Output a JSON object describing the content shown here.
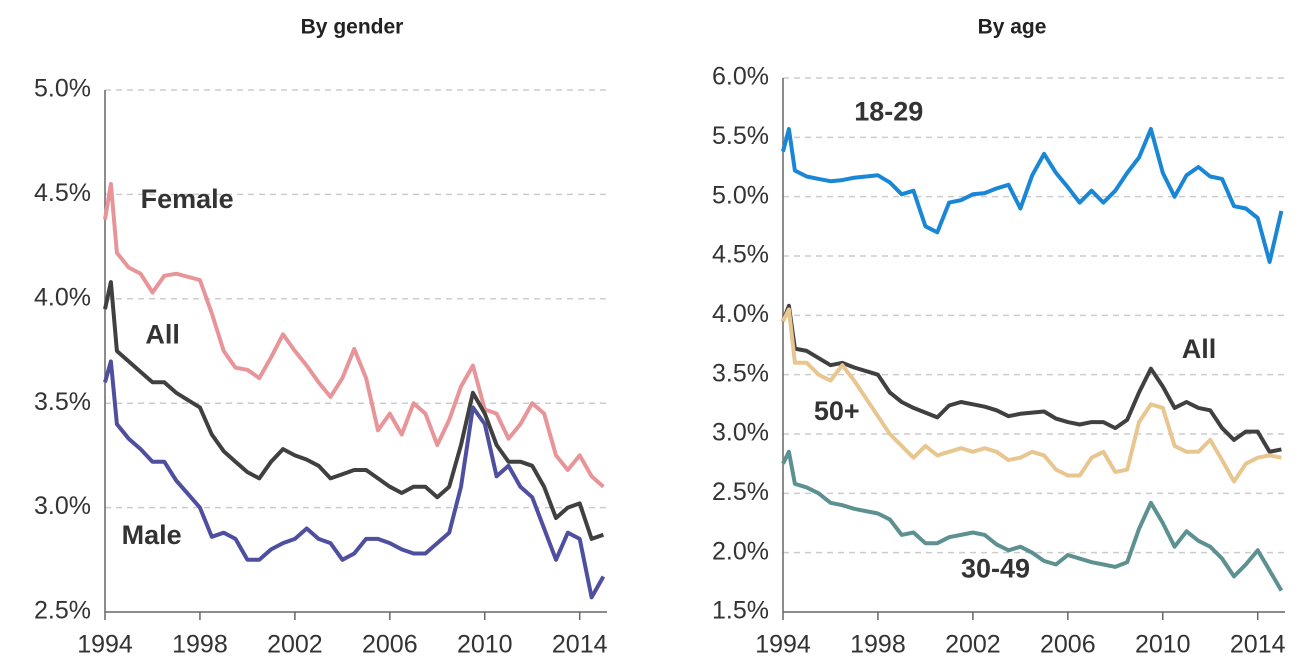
{
  "chart_data": [
    {
      "type": "line",
      "title": "By gender",
      "x": [
        1994,
        1994.25,
        1994.5,
        1995,
        1995.5,
        1996,
        1996.5,
        1997,
        1998,
        1998.5,
        1999,
        1999.5,
        2000,
        2000.5,
        2001,
        2001.5,
        2002,
        2002.5,
        2003,
        2003.5,
        2004,
        2004.5,
        2005,
        2005.5,
        2006,
        2006.5,
        2007,
        2007.5,
        2008,
        2008.5,
        2009,
        2009.5,
        2010,
        2010.5,
        2011,
        2011.5,
        2012,
        2012.5,
        2013,
        2013.5,
        2014,
        2014.5,
        2015
      ],
      "series": [
        {
          "name": "Female",
          "color": "#e8959a",
          "values": [
            4.38,
            4.55,
            4.22,
            4.15,
            4.12,
            4.03,
            4.11,
            4.12,
            4.09,
            3.93,
            3.75,
            3.67,
            3.66,
            3.62,
            3.72,
            3.83,
            3.75,
            3.68,
            3.6,
            3.53,
            3.62,
            3.76,
            3.62,
            3.37,
            3.45,
            3.35,
            3.5,
            3.45,
            3.3,
            3.42,
            3.58,
            3.68,
            3.47,
            3.45,
            3.33,
            3.4,
            3.5,
            3.45,
            3.25,
            3.18,
            3.25,
            3.15,
            3.1
          ]
        },
        {
          "name": "All",
          "color": "#404040",
          "values": [
            3.95,
            4.08,
            3.75,
            3.7,
            3.65,
            3.6,
            3.6,
            3.55,
            3.48,
            3.35,
            3.27,
            3.22,
            3.17,
            3.14,
            3.22,
            3.28,
            3.25,
            3.23,
            3.2,
            3.14,
            3.16,
            3.18,
            3.18,
            3.14,
            3.1,
            3.07,
            3.1,
            3.1,
            3.05,
            3.1,
            3.3,
            3.55,
            3.45,
            3.3,
            3.22,
            3.22,
            3.2,
            3.1,
            2.95,
            3.0,
            3.02,
            2.85,
            2.87
          ]
        },
        {
          "name": "Male",
          "color": "#4f4f9f",
          "values": [
            3.6,
            3.7,
            3.4,
            3.33,
            3.28,
            3.22,
            3.22,
            3.13,
            3.0,
            2.86,
            2.88,
            2.85,
            2.75,
            2.75,
            2.8,
            2.83,
            2.85,
            2.9,
            2.85,
            2.83,
            2.75,
            2.78,
            2.85,
            2.85,
            2.83,
            2.8,
            2.78,
            2.78,
            2.83,
            2.88,
            3.1,
            3.48,
            3.4,
            3.15,
            3.2,
            3.1,
            3.05,
            2.9,
            2.75,
            2.88,
            2.85,
            2.57,
            2.67
          ]
        }
      ],
      "xlim": [
        1994,
        2015.15
      ],
      "xticks": [
        1994,
        1998,
        2002,
        2006,
        2010,
        2014
      ],
      "ylim": [
        2.5,
        5.0
      ],
      "yticks": [
        {
          "value": 2.5,
          "label": "2.5%"
        },
        {
          "value": 3.0,
          "label": "3.0%"
        },
        {
          "value": 3.5,
          "label": "3.5%"
        },
        {
          "value": 4.0,
          "label": "4.0%"
        },
        {
          "value": 4.5,
          "label": "4.5%"
        },
        {
          "value": 5.0,
          "label": "5.0%"
        }
      ],
      "grid": true
    },
    {
      "type": "line",
      "title": "By age",
      "x": [
        1994,
        1994.25,
        1994.5,
        1995,
        1995.5,
        1996,
        1996.5,
        1997,
        1998,
        1998.5,
        1999,
        1999.5,
        2000,
        2000.5,
        2001,
        2001.5,
        2002,
        2002.5,
        2003,
        2003.5,
        2004,
        2004.5,
        2005,
        2005.5,
        2006,
        2006.5,
        2007,
        2007.5,
        2008,
        2008.5,
        2009,
        2009.5,
        2010,
        2010.5,
        2011,
        2011.5,
        2012,
        2012.5,
        2013,
        2013.5,
        2014,
        2014.5,
        2015
      ],
      "series": [
        {
          "name": "18-29",
          "color": "#1a87d6",
          "label_color": "#1a6fb0",
          "values": [
            5.38,
            5.57,
            5.22,
            5.17,
            5.15,
            5.13,
            5.14,
            5.16,
            5.18,
            5.12,
            5.02,
            5.05,
            4.75,
            4.7,
            4.95,
            4.97,
            5.02,
            5.03,
            5.07,
            5.1,
            4.9,
            5.18,
            5.36,
            5.2,
            5.08,
            4.95,
            5.05,
            4.95,
            5.05,
            5.2,
            5.33,
            5.57,
            5.2,
            5.0,
            5.18,
            5.25,
            5.17,
            5.15,
            4.92,
            4.9,
            4.82,
            4.45,
            4.88
          ]
        },
        {
          "name": "All",
          "color": "#404040",
          "values": [
            3.95,
            4.08,
            3.72,
            3.7,
            3.64,
            3.58,
            3.6,
            3.56,
            3.5,
            3.35,
            3.27,
            3.22,
            3.18,
            3.14,
            3.24,
            3.27,
            3.25,
            3.23,
            3.2,
            3.15,
            3.17,
            3.18,
            3.19,
            3.13,
            3.1,
            3.08,
            3.1,
            3.1,
            3.05,
            3.12,
            3.35,
            3.55,
            3.4,
            3.22,
            3.27,
            3.22,
            3.2,
            3.05,
            2.95,
            3.02,
            3.02,
            2.85,
            2.87
          ]
        },
        {
          "name": "50+",
          "color": "#e8c690",
          "label_color": "#8b5e1a",
          "values": [
            3.95,
            4.05,
            3.6,
            3.6,
            3.5,
            3.45,
            3.58,
            3.45,
            3.15,
            3.0,
            2.9,
            2.8,
            2.9,
            2.82,
            2.85,
            2.88,
            2.85,
            2.88,
            2.85,
            2.78,
            2.8,
            2.85,
            2.82,
            2.7,
            2.65,
            2.65,
            2.8,
            2.85,
            2.68,
            2.7,
            3.1,
            3.25,
            3.22,
            2.9,
            2.85,
            2.85,
            2.95,
            2.78,
            2.6,
            2.75,
            2.8,
            2.82,
            2.8
          ]
        },
        {
          "name": "30-49",
          "color": "#5d9191",
          "values": [
            2.75,
            2.85,
            2.58,
            2.55,
            2.5,
            2.42,
            2.4,
            2.37,
            2.33,
            2.28,
            2.15,
            2.17,
            2.08,
            2.08,
            2.13,
            2.15,
            2.17,
            2.15,
            2.07,
            2.02,
            2.05,
            2.0,
            1.93,
            1.9,
            1.98,
            1.95,
            1.92,
            1.9,
            1.88,
            1.92,
            2.2,
            2.42,
            2.25,
            2.05,
            2.18,
            2.1,
            2.05,
            1.95,
            1.8,
            1.9,
            2.02,
            1.85,
            1.68
          ]
        }
      ],
      "xlim": [
        1994,
        2015.15
      ],
      "xticks": [
        1994,
        1998,
        2002,
        2006,
        2010,
        2014
      ],
      "ylim": [
        1.5,
        6.0
      ],
      "yticks": [
        {
          "value": 1.5,
          "label": "1.5%"
        },
        {
          "value": 2.0,
          "label": "2.0%"
        },
        {
          "value": 2.5,
          "label": "2.5%"
        },
        {
          "value": 3.0,
          "label": "3.0%"
        },
        {
          "value": 3.5,
          "label": "3.5%"
        },
        {
          "value": 4.0,
          "label": "4.0%"
        },
        {
          "value": 4.5,
          "label": "4.5%"
        },
        {
          "value": 5.0,
          "label": "5.0%"
        },
        {
          "value": 5.5,
          "label": "5.5%"
        },
        {
          "value": 6.0,
          "label": "6.0%"
        }
      ],
      "grid": true
    }
  ]
}
